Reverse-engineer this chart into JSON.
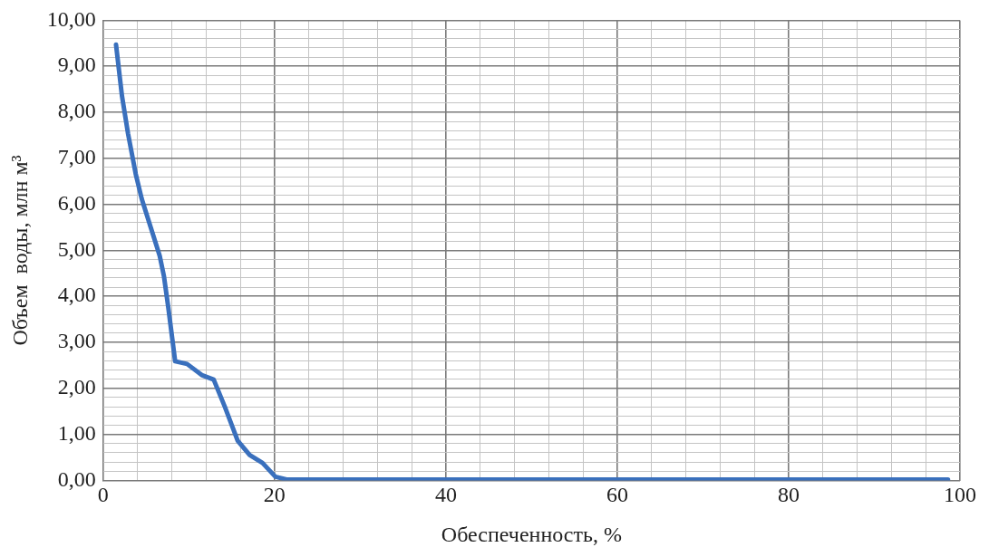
{
  "chart_data": {
    "type": "line",
    "xlabel": "Обеспеченность, %",
    "ylabel": "Объем  воды, млн м³",
    "xlim": [
      0,
      100
    ],
    "ylim": [
      0,
      10
    ],
    "grid": true,
    "legend": false,
    "marker": "none",
    "line_style": "solid",
    "xticks": [
      0,
      {
        "value": 4,
        "label": null
      },
      {
        "value": 8,
        "label": null
      },
      {
        "value": 12,
        "label": null
      },
      {
        "value": 16,
        "label": null
      },
      20,
      {
        "value": 24,
        "label": null
      },
      {
        "value": 28,
        "label": null
      },
      {
        "value": 32,
        "label": null
      },
      {
        "value": 36,
        "label": null
      },
      40,
      {
        "value": 44,
        "label": null
      },
      {
        "value": 48,
        "label": null
      },
      {
        "value": 52,
        "label": null
      },
      {
        "value": 56,
        "label": null
      },
      60,
      {
        "value": 64,
        "label": null
      },
      {
        "value": 68,
        "label": null
      },
      {
        "value": 72,
        "label": null
      },
      {
        "value": 76,
        "label": null
      },
      80,
      {
        "value": 84,
        "label": null
      },
      {
        "value": 88,
        "label": null
      },
      {
        "value": 92,
        "label": null
      },
      {
        "value": 96,
        "label": null
      },
      100
    ],
    "yticks": [
      {
        "value": 0,
        "label": "0,00"
      },
      {
        "value": 0.2,
        "label": null
      },
      {
        "value": 0.4,
        "label": null
      },
      {
        "value": 0.6,
        "label": null
      },
      {
        "value": 0.8,
        "label": null
      },
      {
        "value": 1,
        "label": "1,00"
      },
      {
        "value": 1.2,
        "label": null
      },
      {
        "value": 1.4,
        "label": null
      },
      {
        "value": 1.6,
        "label": null
      },
      {
        "value": 1.8,
        "label": null
      },
      {
        "value": 2,
        "label": "2,00"
      },
      {
        "value": 2.2,
        "label": null
      },
      {
        "value": 2.4,
        "label": null
      },
      {
        "value": 2.6,
        "label": null
      },
      {
        "value": 2.8,
        "label": null
      },
      {
        "value": 3,
        "label": "3,00"
      },
      {
        "value": 3.2,
        "label": null
      },
      {
        "value": 3.4,
        "label": null
      },
      {
        "value": 3.6,
        "label": null
      },
      {
        "value": 3.8,
        "label": null
      },
      {
        "value": 4,
        "label": "4,00"
      },
      {
        "value": 4.2,
        "label": null
      },
      {
        "value": 4.4,
        "label": null
      },
      {
        "value": 4.6,
        "label": null
      },
      {
        "value": 4.8,
        "label": null
      },
      {
        "value": 5,
        "label": "5,00"
      },
      {
        "value": 5.2,
        "label": null
      },
      {
        "value": 5.4,
        "label": null
      },
      {
        "value": 5.6,
        "label": null
      },
      {
        "value": 5.8,
        "label": null
      },
      {
        "value": 6,
        "label": "6,00"
      },
      {
        "value": 6.2,
        "label": null
      },
      {
        "value": 6.4,
        "label": null
      },
      {
        "value": 6.6,
        "label": null
      },
      {
        "value": 6.8,
        "label": null
      },
      {
        "value": 7,
        "label": "7,00"
      },
      {
        "value": 7.2,
        "label": null
      },
      {
        "value": 7.4,
        "label": null
      },
      {
        "value": 7.6,
        "label": null
      },
      {
        "value": 7.8,
        "label": null
      },
      {
        "value": 8,
        "label": "8,00"
      },
      {
        "value": 8.2,
        "label": null
      },
      {
        "value": 8.4,
        "label": null
      },
      {
        "value": 8.6,
        "label": null
      },
      {
        "value": 8.8,
        "label": null
      },
      {
        "value": 9,
        "label": "9,00"
      },
      {
        "value": 9.2,
        "label": null
      },
      {
        "value": 9.4,
        "label": null
      },
      {
        "value": 9.6,
        "label": null
      },
      {
        "value": 9.8,
        "label": null
      },
      {
        "value": 10,
        "label": "10,00"
      }
    ],
    "series": [
      {
        "color": "#3a70bd",
        "x": [
          1.5,
          2.2,
          2.9,
          3.8,
          4.5,
          6.6,
          7.1,
          7.6,
          8.4,
          9.8,
          11.5,
          12.9,
          14.2,
          15.7,
          17.1,
          18.6,
          20.1,
          21.4,
          98.6
        ],
        "values": [
          9.47,
          8.35,
          7.54,
          6.66,
          6.12,
          4.88,
          4.43,
          3.76,
          2.59,
          2.53,
          2.29,
          2.19,
          1.6,
          0.86,
          0.55,
          0.38,
          0.08,
          0.02,
          0.02
        ]
      }
    ]
  }
}
